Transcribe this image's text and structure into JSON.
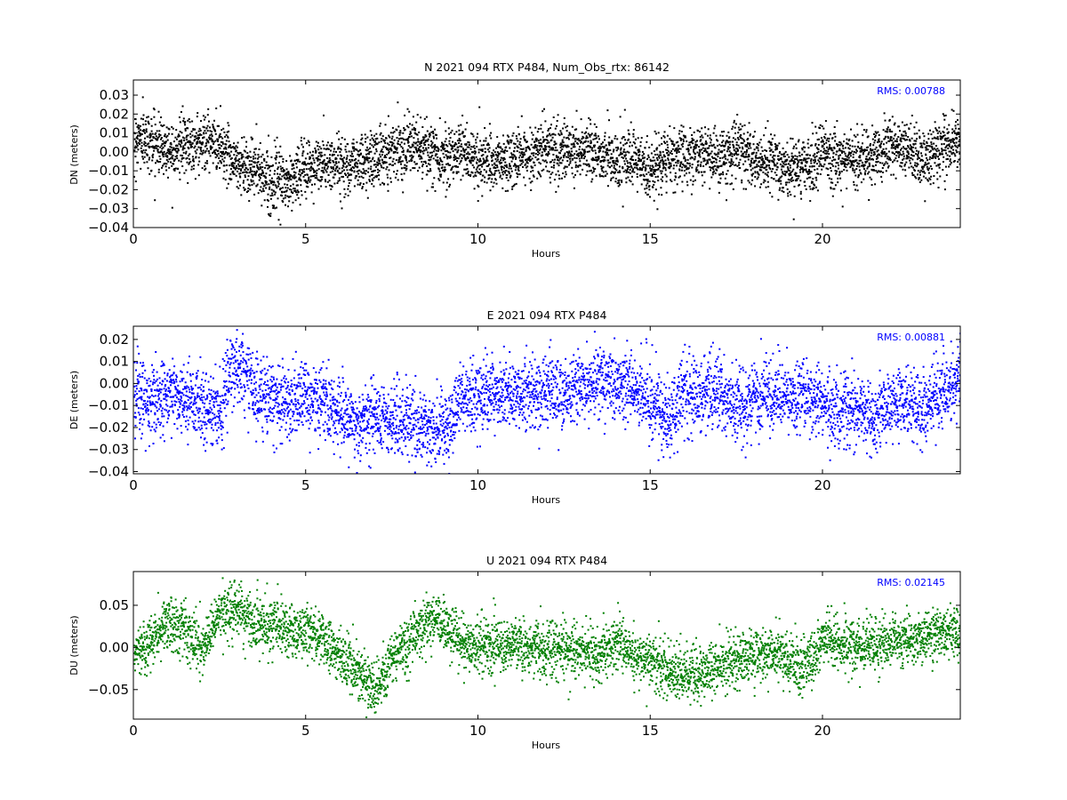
{
  "chart_data": [
    {
      "type": "scatter",
      "title": "N 2021 094 RTX  P484, Num_Obs_rtx: 86142",
      "xlabel": "Hours",
      "ylabel": "DN (meters)",
      "xlim": [
        0,
        24
      ],
      "ylim": [
        -0.04,
        0.038
      ],
      "xticks": [
        0,
        5,
        10,
        15,
        20
      ],
      "xtick_labels": [
        "0",
        "5",
        "10",
        "15",
        "20"
      ],
      "yticks": [
        -0.04,
        -0.03,
        -0.02,
        -0.01,
        0.0,
        0.01,
        0.02,
        0.03
      ],
      "ytick_labels": [
        "−0.04",
        "−0.03",
        "−0.02",
        "−0.01",
        "0.00",
        "0.01",
        "0.02",
        "0.03"
      ],
      "annotation": "RMS:  0.00788",
      "color": "#000000",
      "noise": 0.0075,
      "series": [
        {
          "x": [
            0,
            0.5,
            1,
            1.5,
            2,
            2.5,
            3,
            3.5,
            4,
            4.5,
            5,
            5.5,
            6,
            6.5,
            7,
            7.5,
            8,
            8.5,
            9,
            9.5,
            10,
            10.5,
            11,
            11.5,
            12,
            12.5,
            13,
            13.5,
            14,
            14.5,
            15,
            15.5,
            16,
            16.5,
            17,
            17.5,
            18,
            18.5,
            19,
            19.5,
            20,
            20.5,
            21,
            21.5,
            22,
            22.5,
            23,
            23.5,
            24
          ],
          "y": [
            0.008,
            0.006,
            0.002,
            0.004,
            0.006,
            0.004,
            -0.006,
            -0.008,
            -0.015,
            -0.016,
            -0.008,
            -0.006,
            -0.006,
            -0.005,
            -0.003,
            0.002,
            0.004,
            0.0,
            -0.002,
            0.002,
            -0.004,
            -0.006,
            -0.004,
            0.0,
            0.002,
            0.0,
            0.002,
            0.0,
            -0.004,
            -0.005,
            -0.01,
            -0.002,
            -0.002,
            0.0,
            -0.004,
            0.002,
            -0.004,
            -0.006,
            -0.01,
            -0.008,
            0.0,
            -0.004,
            -0.002,
            0.0,
            0.002,
            0.0,
            -0.004,
            0.004,
            0.004
          ]
        }
      ]
    },
    {
      "type": "scatter",
      "title": "E 2021 094 RTX  P484",
      "xlabel": "Hours",
      "ylabel": "DE (meters)",
      "xlim": [
        0,
        24
      ],
      "ylim": [
        -0.041,
        0.026
      ],
      "xticks": [
        0,
        5,
        10,
        15,
        20
      ],
      "xtick_labels": [
        "0",
        "5",
        "10",
        "15",
        "20"
      ],
      "yticks": [
        -0.04,
        -0.03,
        -0.02,
        -0.01,
        0.0,
        0.01,
        0.02
      ],
      "ytick_labels": [
        "−0.04",
        "−0.03",
        "−0.02",
        "−0.01",
        "0.00",
        "0.01",
        "0.02"
      ],
      "annotation": "RMS:  0.00881",
      "color": "#0000ff",
      "noise": 0.008,
      "series": [
        {
          "x": [
            0,
            0.5,
            1,
            1.5,
            2,
            2.5,
            2.8,
            3.1,
            3.5,
            4,
            4.5,
            5,
            5.5,
            6,
            6.5,
            7,
            7.5,
            8,
            8.5,
            9,
            9.5,
            10,
            10.5,
            11,
            11.5,
            12,
            12.5,
            13,
            13.5,
            14,
            14.5,
            15,
            15.5,
            16,
            16.5,
            17,
            17.5,
            18,
            18.5,
            19,
            19.5,
            20,
            20.5,
            21,
            21.5,
            22,
            22.5,
            23,
            23.5,
            24
          ],
          "y": [
            -0.006,
            -0.008,
            -0.004,
            -0.006,
            -0.01,
            -0.012,
            0.008,
            0.008,
            -0.004,
            -0.006,
            -0.008,
            -0.006,
            -0.006,
            -0.014,
            -0.018,
            -0.014,
            -0.016,
            -0.018,
            -0.02,
            -0.022,
            -0.006,
            -0.006,
            -0.004,
            -0.006,
            -0.004,
            -0.002,
            -0.004,
            0.0,
            0.002,
            0.0,
            -0.002,
            -0.008,
            -0.016,
            -0.004,
            -0.006,
            -0.004,
            -0.012,
            -0.006,
            -0.004,
            -0.006,
            -0.004,
            -0.008,
            -0.012,
            -0.01,
            -0.016,
            -0.01,
            -0.006,
            -0.012,
            -0.004,
            0.004
          ]
        }
      ]
    },
    {
      "type": "scatter",
      "title": "U 2021 094 RTX  P484",
      "xlabel": "Hours",
      "ylabel": "DU (meters)",
      "xlim": [
        0,
        24
      ],
      "ylim": [
        -0.085,
        0.09
      ],
      "xticks": [
        0,
        5,
        10,
        15,
        20
      ],
      "xtick_labels": [
        "0",
        "5",
        "10",
        "15",
        "20"
      ],
      "yticks": [
        -0.05,
        0.0,
        0.05
      ],
      "ytick_labels": [
        "−0.05",
        "0.00",
        "0.05"
      ],
      "annotation": "RMS:  0.02145",
      "color": "#008000",
      "noise": 0.016,
      "series": [
        {
          "x": [
            0,
            0.5,
            1,
            1.5,
            2,
            2.5,
            3,
            3.5,
            4,
            4.5,
            5,
            5.5,
            6,
            6.5,
            7,
            7.5,
            8,
            8.5,
            9,
            9.5,
            10,
            10.5,
            11,
            11.5,
            12,
            12.5,
            13,
            13.5,
            14,
            14.5,
            15,
            15.5,
            16,
            16.5,
            17,
            17.5,
            18,
            18.5,
            19,
            19.5,
            20,
            20.5,
            21,
            21.5,
            22,
            22.5,
            23,
            23.5,
            24
          ],
          "y": [
            -0.005,
            0.01,
            0.03,
            0.02,
            0.0,
            0.04,
            0.045,
            0.03,
            0.03,
            0.02,
            0.02,
            0.01,
            -0.01,
            -0.03,
            -0.05,
            -0.01,
            0.01,
            0.03,
            0.03,
            0.005,
            0.0,
            0.005,
            0.0,
            0.0,
            0.005,
            0.0,
            -0.005,
            -0.01,
            0.01,
            -0.01,
            -0.015,
            -0.025,
            -0.03,
            -0.035,
            -0.02,
            -0.015,
            -0.01,
            -0.005,
            -0.015,
            -0.025,
            0.01,
            0.005,
            0.0,
            0.005,
            0.01,
            0.01,
            0.015,
            0.015,
            0.015
          ]
        }
      ]
    }
  ]
}
